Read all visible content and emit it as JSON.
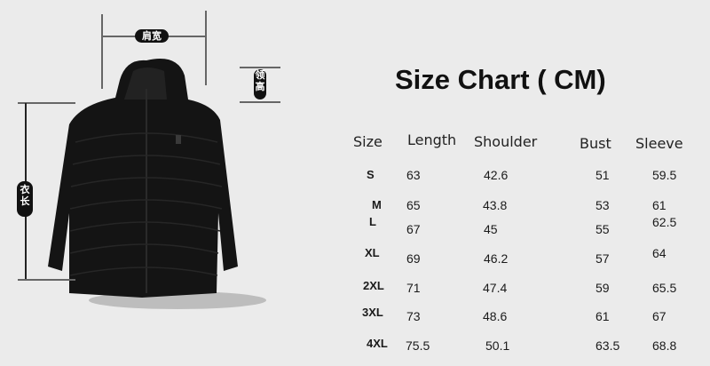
{
  "title": "Size Chart ( CM)",
  "labels": {
    "shoulder_width": "肩宽",
    "collar_height": "领高",
    "length": "衣长"
  },
  "table": {
    "headers": [
      "Size",
      "Length",
      "Shoulder",
      "Bust",
      "Sleeve"
    ],
    "rows": [
      [
        "S",
        "63",
        "42.6",
        "51",
        "59.5"
      ],
      [
        "M",
        "65",
        "43.8",
        "53",
        "61"
      ],
      [
        "L",
        "67",
        "45",
        "55",
        "62.5"
      ],
      [
        "XL",
        "69",
        "46.2",
        "57",
        "64"
      ],
      [
        "2XL",
        "71",
        "47.4",
        "59",
        "65.5"
      ],
      [
        "3XL",
        "73",
        "48.6",
        "61",
        "67"
      ],
      [
        "4XL",
        "75.5",
        "50.1",
        "63.5",
        "68.8"
      ]
    ]
  },
  "colors": {
    "background": "#ebebeb",
    "jacket": "#141414"
  }
}
